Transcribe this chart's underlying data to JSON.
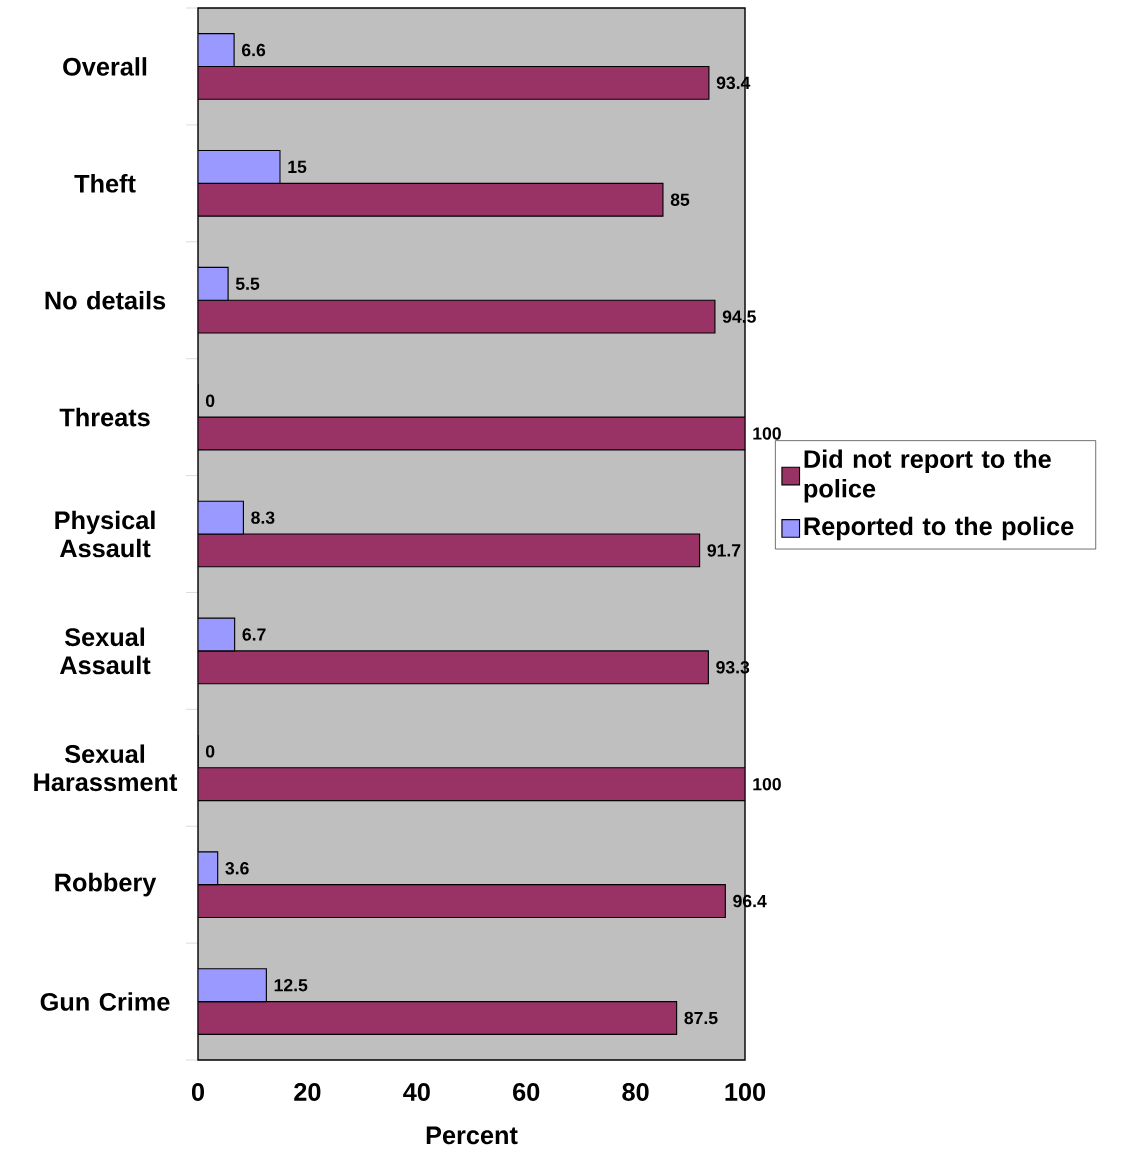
{
  "chart_data": {
    "type": "bar",
    "orientation": "horizontal",
    "xlabel": "Percent",
    "categories": [
      "Overall",
      "Theft",
      "No details",
      "Threats",
      "Physical Assault",
      "Sexual Assault",
      "Sexual Harassment",
      "Robbery",
      "Gun Crime"
    ],
    "series": [
      {
        "name": "Did not report to the police",
        "color": "#993366",
        "values": [
          93.4,
          85,
          94.5,
          100,
          91.7,
          93.3,
          100,
          96.4,
          87.5
        ]
      },
      {
        "name": "Reported to the police",
        "color": "#9999ff",
        "values": [
          6.6,
          15,
          5.5,
          0,
          8.3,
          6.7,
          0,
          3.6,
          12.5
        ]
      }
    ],
    "xlim": [
      0,
      100
    ],
    "xticks": [
      0,
      20,
      40,
      60,
      80,
      100
    ],
    "data_labels": true,
    "legend": "right",
    "grid": false
  }
}
